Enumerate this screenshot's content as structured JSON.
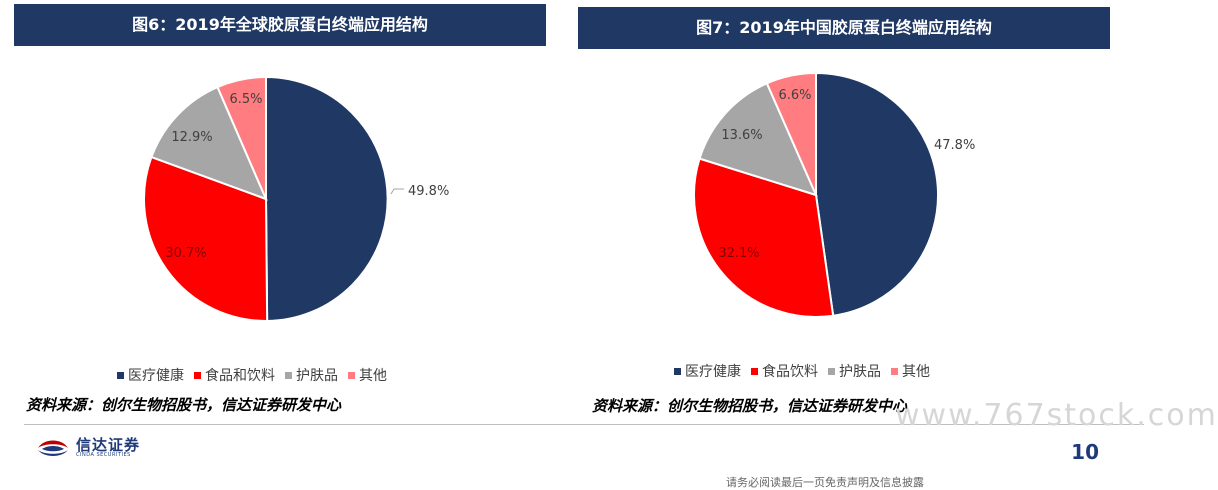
{
  "chart_data": [
    {
      "type": "pie",
      "title": "图6：2019年全球胶原蛋白终端应用结构",
      "categories": [
        "医疗健康",
        "食品和饮料",
        "护肤品",
        "其他"
      ],
      "values": [
        49.8,
        30.7,
        12.9,
        6.5
      ],
      "labels": [
        "49.8%",
        "30.7%",
        "12.9%",
        "6.5%"
      ],
      "colors": [
        "#1f3864",
        "#ff0000",
        "#a6a6a6",
        "#ff7c80"
      ],
      "legend_position": "bottom"
    },
    {
      "type": "pie",
      "title": "图7：2019年中国胶原蛋白终端应用结构",
      "categories": [
        "医疗健康",
        "食品饮料",
        "护肤品",
        "其他"
      ],
      "values": [
        47.8,
        32.1,
        13.6,
        6.6
      ],
      "labels": [
        "47.8%",
        "32.1%",
        "13.6%",
        "6.6%"
      ],
      "colors": [
        "#1f3864",
        "#ff0000",
        "#a6a6a6",
        "#ff7c80"
      ],
      "legend_position": "bottom"
    }
  ],
  "source_left": "资料来源：创尔生物招股书，信达证券研发中心",
  "source_right": "资料来源：创尔生物招股书，信达证券研发中心",
  "logo_cn": "信达证券",
  "logo_en": "CINDA SECURITIES",
  "page_number": "10",
  "watermark": "www.767stock.com",
  "footer_note": "请务必阅读最后一页免责声明及信息披露"
}
